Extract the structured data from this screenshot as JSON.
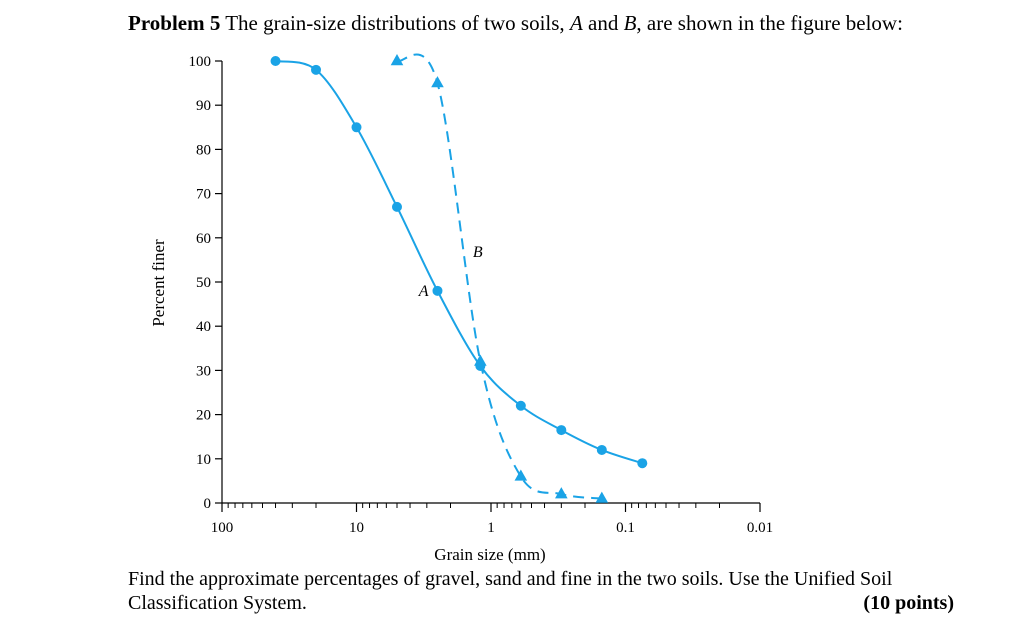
{
  "header": {
    "problem_label": "Problem 5",
    "text_before_a": " The grain-size distributions of two soils, ",
    "soil_a": "A",
    "text_and": " and ",
    "soil_b": "B",
    "text_after": ", are shown in the figure below:"
  },
  "footer": {
    "line1": "Find the approximate percentages of gravel, sand and fine in the two soils. Use the Unified Soil",
    "line2": "Classification System.",
    "points": "(10 points)"
  },
  "chart_data": {
    "type": "line",
    "title": "",
    "xlabel": "Grain size (mm)",
    "ylabel": "Percent finer",
    "x_scale": "log",
    "x_reversed": true,
    "xlim": [
      100,
      0.01
    ],
    "ylim": [
      0,
      100
    ],
    "x_ticks": [
      100,
      10,
      1,
      0.1,
      0.01
    ],
    "x_tick_labels": [
      "100",
      "10",
      "1",
      "0.1",
      "0.01"
    ],
    "y_ticks": [
      0,
      10,
      20,
      30,
      40,
      50,
      60,
      70,
      80,
      90,
      100
    ],
    "y_tick_labels": [
      "0",
      "10",
      "20",
      "30",
      "40",
      "50",
      "60",
      "70",
      "80",
      "90",
      "100"
    ],
    "grid": false,
    "color": "#1aa3e6",
    "series": [
      {
        "name": "A",
        "line_style": "solid",
        "marker": "circle",
        "x": [
          40,
          20,
          10,
          5,
          2.5,
          1.2,
          0.6,
          0.3,
          0.15,
          0.075
        ],
        "values": [
          100,
          98,
          85,
          67,
          48,
          31,
          22,
          16.5,
          12,
          9
        ]
      },
      {
        "name": "B",
        "line_style": "dashed",
        "marker": "triangle",
        "x": [
          5,
          2.5,
          1.2,
          0.6,
          0.3,
          0.15
        ],
        "values": [
          100,
          95,
          32,
          6,
          2,
          1
        ]
      }
    ]
  }
}
